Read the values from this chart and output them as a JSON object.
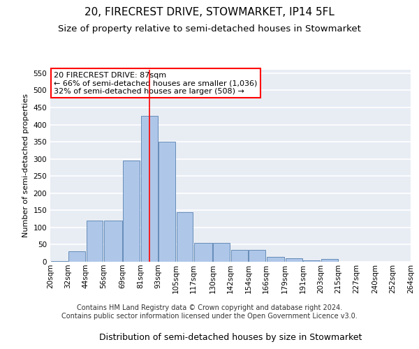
{
  "title": "20, FIRECREST DRIVE, STOWMARKET, IP14 5FL",
  "subtitle": "Size of property relative to semi-detached houses in Stowmarket",
  "xlabel": "Distribution of semi-detached houses by size in Stowmarket",
  "ylabel": "Number of semi-detached properties",
  "footer1": "Contains HM Land Registry data © Crown copyright and database right 2024.",
  "footer2": "Contains public sector information licensed under the Open Government Licence v3.0.",
  "annotation_line1": "20 FIRECREST DRIVE: 87sqm",
  "annotation_line2": "← 66% of semi-detached houses are smaller (1,036)",
  "annotation_line3": "32% of semi-detached houses are larger (508) →",
  "property_size": 87,
  "bar_left_edges": [
    20,
    32,
    44,
    56,
    69,
    81,
    93,
    105,
    117,
    130,
    142,
    154,
    166,
    179,
    191,
    203,
    215,
    227,
    240,
    252
  ],
  "bar_widths": [
    12,
    12,
    12,
    13,
    12,
    12,
    12,
    12,
    13,
    12,
    12,
    12,
    13,
    12,
    12,
    12,
    12,
    13,
    12,
    12
  ],
  "bar_heights": [
    2,
    30,
    120,
    120,
    295,
    425,
    350,
    145,
    55,
    55,
    35,
    35,
    15,
    10,
    5,
    8,
    0,
    0,
    1,
    0
  ],
  "tick_labels": [
    "20sqm",
    "32sqm",
    "44sqm",
    "56sqm",
    "69sqm",
    "81sqm",
    "93sqm",
    "105sqm",
    "117sqm",
    "130sqm",
    "142sqm",
    "154sqm",
    "166sqm",
    "179sqm",
    "191sqm",
    "203sqm",
    "215sqm",
    "227sqm",
    "240sqm",
    "252sqm",
    "264sqm"
  ],
  "bar_color": "#aec6e8",
  "bar_edgecolor": "#5580b0",
  "vline_color": "red",
  "vline_x": 87,
  "ylim": [
    0,
    560
  ],
  "yticks": [
    0,
    50,
    100,
    150,
    200,
    250,
    300,
    350,
    400,
    450,
    500,
    550
  ],
  "background_color": "#e8edf4",
  "grid_color": "white",
  "annotation_box_edgecolor": "red",
  "annotation_box_facecolor": "white",
  "title_fontsize": 11,
  "subtitle_fontsize": 9.5,
  "xlabel_fontsize": 9,
  "ylabel_fontsize": 8,
  "tick_fontsize": 7.5,
  "annotation_fontsize": 8,
  "footer_fontsize": 7
}
